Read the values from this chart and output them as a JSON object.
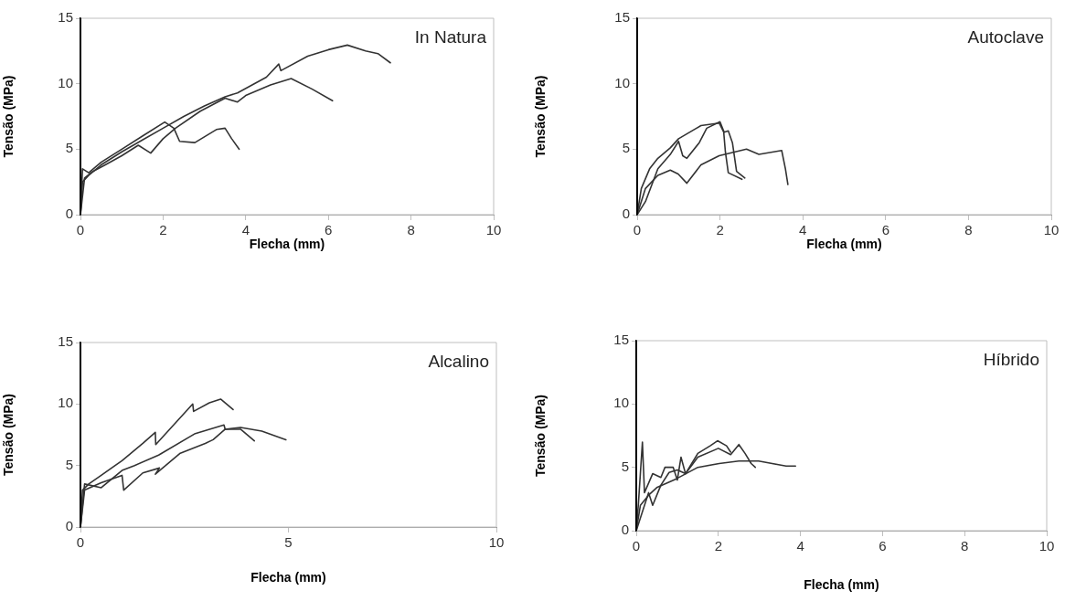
{
  "chart_data": [
    {
      "type": "line",
      "title": "In Natura",
      "xlabel": "Flecha (mm)",
      "ylabel": "Tensão (MPa)",
      "xlim": [
        0,
        10
      ],
      "xticks": [
        0,
        2,
        4,
        6,
        8,
        10
      ],
      "ylim": [
        0,
        15
      ],
      "yticks": [
        0,
        5,
        10,
        15
      ],
      "grid": false,
      "marker": "none",
      "line_style": "solid",
      "series": [
        {
          "color": "#333333",
          "x": [
            0,
            0.05,
            0.2,
            0.5,
            1,
            1.5,
            2,
            2.5,
            3,
            3.5,
            3.8,
            4.5,
            4.8,
            4.85,
            5.5,
            6.0,
            6.46,
            6.9,
            7.2,
            7.5
          ],
          "values": [
            0,
            2.5,
            3,
            3.8,
            4.8,
            5.7,
            6.6,
            7.5,
            8.3,
            9,
            9.3,
            10.5,
            11.5,
            11.0,
            12.1,
            12.6,
            12.95,
            12.5,
            12.3,
            11.6
          ]
        },
        {
          "color": "#333333",
          "x": [
            0,
            0.1,
            0.3,
            0.6,
            1,
            1.4,
            1.7,
            2.0,
            2.3,
            2.9,
            3.5,
            3.8,
            4.0,
            4.6,
            5.1,
            5.6,
            6.1
          ],
          "values": [
            0,
            2.8,
            3.3,
            3.8,
            4.5,
            5.3,
            4.7,
            5.8,
            6.6,
            7.9,
            8.9,
            8.6,
            9.1,
            9.9,
            10.4,
            9.6,
            8.7
          ]
        },
        {
          "color": "#333333",
          "x": [
            0,
            0.05,
            0.2,
            0.5,
            1,
            1.5,
            2.04,
            2.26,
            2.4,
            2.77,
            3.29,
            3.5,
            3.66,
            3.84
          ],
          "values": [
            0,
            3.5,
            3.2,
            4,
            5,
            6,
            7.07,
            6.6,
            5.6,
            5.5,
            6.5,
            6.6,
            5.8,
            5.0
          ]
        }
      ]
    },
    {
      "type": "line",
      "title": "Autoclave",
      "xlabel": "Flecha (mm)",
      "ylabel": "Tensão (MPa)",
      "xlim": [
        0,
        10
      ],
      "xticks": [
        0,
        2,
        4,
        6,
        8,
        10
      ],
      "ylim": [
        0,
        15
      ],
      "yticks": [
        0,
        5,
        10,
        15
      ],
      "grid": false,
      "marker": "none",
      "line_style": "solid",
      "series": [
        {
          "color": "#333333",
          "x": [
            0,
            0.1,
            0.3,
            0.5,
            0.8,
            1.0,
            1.54,
            1.98,
            2.09,
            2.13,
            2.2,
            2.53
          ],
          "values": [
            0,
            2,
            3.5,
            4.3,
            5.1,
            5.8,
            6.8,
            7.0,
            6.3,
            4.8,
            3.2,
            2.7
          ]
        },
        {
          "color": "#333333",
          "x": [
            0,
            0.2,
            0.5,
            0.8,
            1.0,
            1.1,
            1.2,
            1.5,
            1.68,
            2.0,
            2.1,
            2.2,
            2.3,
            2.4,
            2.6
          ],
          "values": [
            0,
            1,
            3.5,
            4.6,
            5.6,
            4.5,
            4.3,
            5.5,
            6.6,
            7.1,
            6.3,
            6.4,
            5.5,
            3.3,
            2.8
          ]
        },
        {
          "color": "#333333",
          "x": [
            0,
            0.2,
            0.5,
            0.8,
            0.99,
            1.2,
            1.54,
            1.98,
            2.64,
            2.94,
            3.49,
            3.58,
            3.64
          ],
          "values": [
            0,
            2,
            3,
            3.4,
            3.1,
            2.4,
            3.8,
            4.5,
            5.0,
            4.6,
            4.9,
            3.5,
            2.3
          ]
        }
      ]
    },
    {
      "type": "line",
      "title": "Alcalino",
      "xlabel": "Flecha (mm)",
      "ylabel": "Tensão (MPa)",
      "xlim": [
        0,
        10
      ],
      "xticks": [
        0,
        5,
        10
      ],
      "ylim": [
        0,
        15
      ],
      "yticks": [
        0,
        5,
        10,
        15
      ],
      "grid": false,
      "marker": "none",
      "line_style": "solid",
      "series": [
        {
          "color": "#333333",
          "x": [
            0,
            0.05,
            0.2,
            0.5,
            1,
            1.5,
            1.8,
            1.81,
            2.7,
            2.72,
            3.1,
            3.37,
            3.67
          ],
          "values": [
            0,
            3,
            3.5,
            4.2,
            5.4,
            6.8,
            7.7,
            6.7,
            10,
            9.4,
            10.1,
            10.4,
            9.55
          ]
        },
        {
          "color": "#333333",
          "x": [
            0,
            0.1,
            0.5,
            1,
            1.04,
            1.5,
            1.9,
            1.8,
            2.4,
            3.0,
            3.19,
            3.48,
            3.85,
            4.36,
            4.94
          ],
          "values": [
            0,
            3,
            3.6,
            4.2,
            3.0,
            4.4,
            4.8,
            4.3,
            6.0,
            6.8,
            7.1,
            7.95,
            8.1,
            7.8,
            7.1
          ]
        },
        {
          "color": "#333333",
          "x": [
            0,
            0.1,
            0.5,
            1,
            1.3,
            1.88,
            2.76,
            3.45,
            3.48,
            3.85,
            4.18
          ],
          "values": [
            0,
            3.5,
            3.2,
            4.6,
            5.0,
            5.85,
            7.6,
            8.3,
            7.95,
            7.95,
            7.0
          ]
        }
      ]
    },
    {
      "type": "line",
      "title": "Híbrido",
      "xlabel": "Flecha (mm)",
      "ylabel": "Tensão (MPa)",
      "xlim": [
        0,
        10
      ],
      "xticks": [
        0,
        2,
        4,
        6,
        8,
        10
      ],
      "ylim": [
        0,
        15
      ],
      "yticks": [
        0,
        5,
        10,
        15
      ],
      "grid": false,
      "marker": "none",
      "line_style": "solid",
      "series": [
        {
          "color": "#333333",
          "x": [
            0,
            0.1,
            0.3,
            0.5,
            0.98,
            1.5,
            2.02,
            2.5,
            2.98,
            3.65,
            3.88
          ],
          "values": [
            0,
            2,
            2.8,
            3.4,
            4.1,
            5.0,
            5.3,
            5.5,
            5.5,
            5.1,
            5.1
          ]
        },
        {
          "color": "#333333",
          "x": [
            0,
            0.05,
            0.15,
            0.2,
            0.4,
            0.6,
            0.7,
            0.9,
            1.0,
            1.09,
            1.2,
            1.5,
            1.8,
            1.98,
            2.2,
            2.3
          ],
          "values": [
            0,
            2,
            7,
            3,
            4.5,
            4.2,
            5,
            5.0,
            4.0,
            5.8,
            4.5,
            6.1,
            6.7,
            7.1,
            6.7,
            6.2
          ]
        },
        {
          "color": "#333333",
          "x": [
            0,
            0.3,
            0.4,
            0.6,
            0.8,
            1.0,
            1.2,
            1.5,
            2.0,
            2.3,
            2.5,
            2.65,
            2.8,
            2.9
          ],
          "values": [
            0,
            3,
            2,
            3.6,
            4.6,
            4.8,
            4.5,
            5.8,
            6.5,
            6.0,
            6.8,
            6.1,
            5.3,
            5.0
          ]
        }
      ]
    }
  ]
}
